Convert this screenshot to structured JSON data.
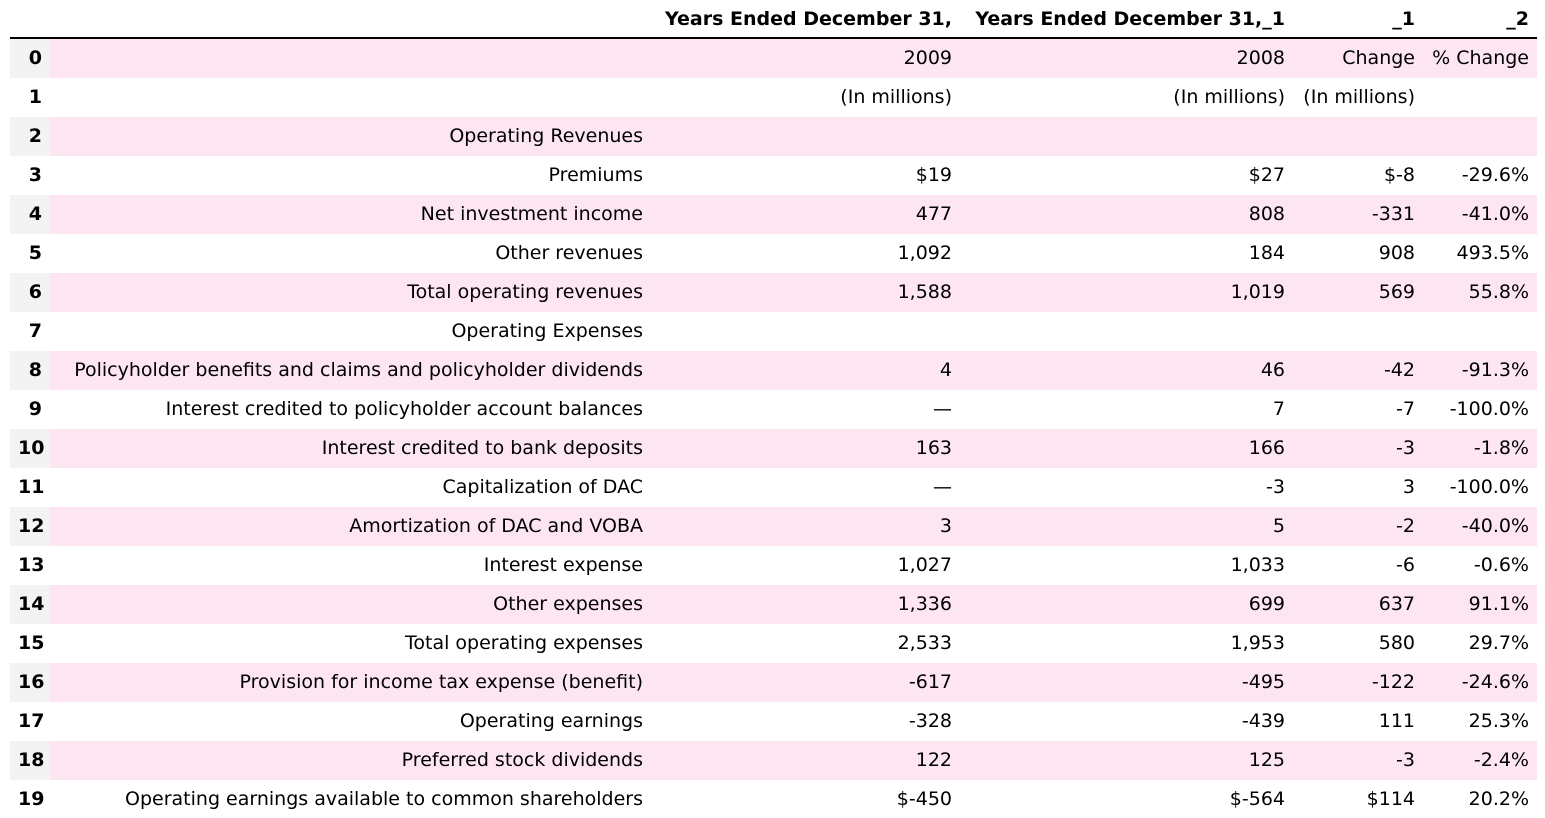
{
  "table": {
    "headers": [
      "",
      "",
      "Years Ended December 31,",
      "Years Ended December 31,_1",
      "_1",
      "_2"
    ],
    "rows": [
      {
        "index": "0",
        "label": "",
        "y2009": "2009",
        "y2008": "2008",
        "change": "Change",
        "pct": "% Change"
      },
      {
        "index": "1",
        "label": "",
        "y2009": "(In millions)",
        "y2008": "(In millions)",
        "change": "(In millions)",
        "pct": ""
      },
      {
        "index": "2",
        "label": "Operating Revenues",
        "y2009": "",
        "y2008": "",
        "change": "",
        "pct": ""
      },
      {
        "index": "3",
        "label": "Premiums",
        "y2009": "$19",
        "y2008": "$27",
        "change": "$-8",
        "pct": "-29.6%"
      },
      {
        "index": "4",
        "label": "Net investment income",
        "y2009": "477",
        "y2008": "808",
        "change": "-331",
        "pct": "-41.0%"
      },
      {
        "index": "5",
        "label": "Other revenues",
        "y2009": "1,092",
        "y2008": "184",
        "change": "908",
        "pct": "493.5%"
      },
      {
        "index": "6",
        "label": "Total operating revenues",
        "y2009": "1,588",
        "y2008": "1,019",
        "change": "569",
        "pct": "55.8%"
      },
      {
        "index": "7",
        "label": "Operating Expenses",
        "y2009": "",
        "y2008": "",
        "change": "",
        "pct": ""
      },
      {
        "index": "8",
        "label": "Policyholder benefits and claims and policyholder dividends",
        "y2009": "4",
        "y2008": "46",
        "change": "-42",
        "pct": "-91.3%"
      },
      {
        "index": "9",
        "label": "Interest credited to policyholder account balances",
        "y2009": "—",
        "y2008": "7",
        "change": "-7",
        "pct": "-100.0%"
      },
      {
        "index": "10",
        "label": "Interest credited to bank deposits",
        "y2009": "163",
        "y2008": "166",
        "change": "-3",
        "pct": "-1.8%"
      },
      {
        "index": "11",
        "label": "Capitalization of DAC",
        "y2009": "—",
        "y2008": "-3",
        "change": "3",
        "pct": "-100.0%"
      },
      {
        "index": "12",
        "label": "Amortization of DAC and VOBA",
        "y2009": "3",
        "y2008": "5",
        "change": "-2",
        "pct": "-40.0%"
      },
      {
        "index": "13",
        "label": "Interest expense",
        "y2009": "1,027",
        "y2008": "1,033",
        "change": "-6",
        "pct": "-0.6%"
      },
      {
        "index": "14",
        "label": "Other expenses",
        "y2009": "1,336",
        "y2008": "699",
        "change": "637",
        "pct": "91.1%"
      },
      {
        "index": "15",
        "label": "Total operating expenses",
        "y2009": "2,533",
        "y2008": "1,953",
        "change": "580",
        "pct": "29.7%"
      },
      {
        "index": "16",
        "label": "Provision for income tax expense (benefit)",
        "y2009": "-617",
        "y2008": "-495",
        "change": "-122",
        "pct": "-24.6%"
      },
      {
        "index": "17",
        "label": "Operating earnings",
        "y2009": "-328",
        "y2008": "-439",
        "change": "111",
        "pct": "25.3%"
      },
      {
        "index": "18",
        "label": "Preferred stock dividends",
        "y2009": "122",
        "y2008": "125",
        "change": "-3",
        "pct": "-2.4%"
      },
      {
        "index": "19",
        "label": "Operating earnings available to common shareholders",
        "y2009": "$-450",
        "y2008": "$-564",
        "change": "$114",
        "pct": "20.2%"
      }
    ]
  }
}
